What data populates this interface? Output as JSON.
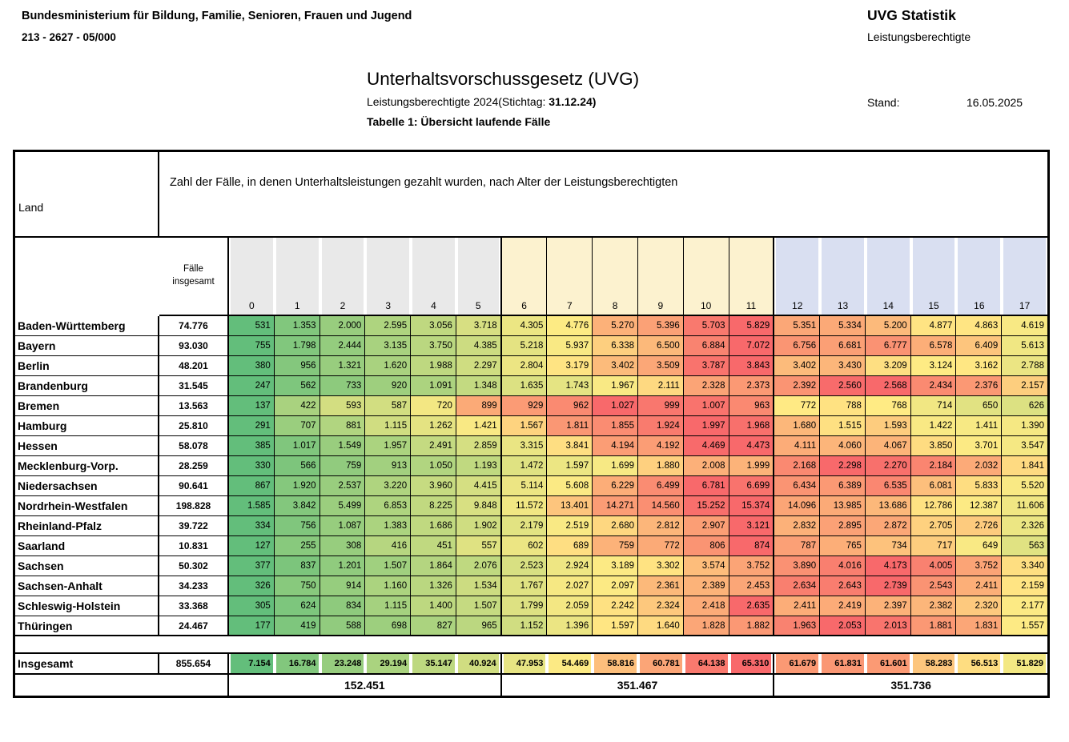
{
  "letterhead": {
    "ministry": "Bundesministerium für Bildung, Familie, Senioren, Frauen und Jugend",
    "reference": "213 - 2627 - 05/000",
    "program": "UVG Statistik",
    "program_sub": "Leistungsberechtigte",
    "stand_label": "Stand:",
    "stand_date": "16.05.2025"
  },
  "title": {
    "main": "Unterhaltsvorschussgesetz (UVG)",
    "subtitle_prefix": "Leistungsberechtigte 2024(Stichtag: ",
    "subtitle_bold": "31.12.24)",
    "table_label": "Tabelle 1: Übersicht laufende Fälle"
  },
  "table": {
    "description": "Zahl der Fälle, in denen Unterhaltsleistungen gezahlt wurden, nach Alter der Leistungsberechtigten",
    "land_header": "Land",
    "faelle_header": "Fälle insgesamt",
    "age_columns": [
      "0",
      "1",
      "2",
      "3",
      "4",
      "5",
      "6",
      "7",
      "8",
      "9",
      "10",
      "11",
      "12",
      "13",
      "14",
      "15",
      "16",
      "17"
    ],
    "rows": [
      {
        "land": "Baden-Württemberg",
        "total": 74776,
        "values": [
          531,
          1353,
          2000,
          2595,
          3056,
          3718,
          4305,
          4776,
          5270,
          5396,
          5703,
          5829,
          5351,
          5334,
          5200,
          4877,
          4863,
          4619
        ]
      },
      {
        "land": "Bayern",
        "total": 93030,
        "values": [
          755,
          1798,
          2444,
          3135,
          3750,
          4385,
          5218,
          5937,
          6338,
          6500,
          6884,
          7072,
          6756,
          6681,
          6777,
          6578,
          6409,
          5613
        ]
      },
      {
        "land": "Berlin",
        "total": 48201,
        "values": [
          380,
          956,
          1321,
          1620,
          1988,
          2297,
          2804,
          3179,
          3402,
          3509,
          3787,
          3843,
          3402,
          3430,
          3209,
          3124,
          3162,
          2788
        ]
      },
      {
        "land": "Brandenburg",
        "total": 31545,
        "values": [
          247,
          562,
          733,
          920,
          1091,
          1348,
          1635,
          1743,
          1967,
          2111,
          2328,
          2373,
          2392,
          2560,
          2568,
          2434,
          2376,
          2157
        ]
      },
      {
        "land": "Bremen",
        "total": 13563,
        "values": [
          137,
          422,
          593,
          587,
          720,
          899,
          929,
          962,
          1027,
          999,
          1007,
          963,
          772,
          788,
          768,
          714,
          650,
          626
        ]
      },
      {
        "land": "Hamburg",
        "total": 25810,
        "values": [
          291,
          707,
          881,
          1115,
          1262,
          1421,
          1567,
          1811,
          1855,
          1924,
          1997,
          1968,
          1680,
          1515,
          1593,
          1422,
          1411,
          1390
        ]
      },
      {
        "land": "Hessen",
        "total": 58078,
        "values": [
          385,
          1017,
          1549,
          1957,
          2491,
          2859,
          3315,
          3841,
          4194,
          4192,
          4469,
          4473,
          4111,
          4060,
          4067,
          3850,
          3701,
          3547
        ]
      },
      {
        "land": "Mecklenburg-Vorp.",
        "total": 28259,
        "values": [
          330,
          566,
          759,
          913,
          1050,
          1193,
          1472,
          1597,
          1699,
          1880,
          2008,
          1999,
          2168,
          2298,
          2270,
          2184,
          2032,
          1841
        ]
      },
      {
        "land": "Niedersachsen",
        "total": 90641,
        "values": [
          867,
          1920,
          2537,
          3220,
          3960,
          4415,
          5114,
          5608,
          6229,
          6499,
          6781,
          6699,
          6434,
          6389,
          6535,
          6081,
          5833,
          5520
        ]
      },
      {
        "land": "Nordrhein-Westfalen",
        "total": 198828,
        "values": [
          1585,
          3842,
          5499,
          6853,
          8225,
          9848,
          11572,
          13401,
          14271,
          14560,
          15252,
          15374,
          14096,
          13985,
          13686,
          12786,
          12387,
          11606
        ]
      },
      {
        "land": "Rheinland-Pfalz",
        "total": 39722,
        "values": [
          334,
          756,
          1087,
          1383,
          1686,
          1902,
          2179,
          2519,
          2680,
          2812,
          2907,
          3121,
          2832,
          2895,
          2872,
          2705,
          2726,
          2326
        ]
      },
      {
        "land": "Saarland",
        "total": 10831,
        "values": [
          127,
          255,
          308,
          416,
          451,
          557,
          602,
          689,
          759,
          772,
          806,
          874,
          787,
          765,
          734,
          717,
          649,
          563
        ]
      },
      {
        "land": "Sachsen",
        "total": 50302,
        "values": [
          377,
          837,
          1201,
          1507,
          1864,
          2076,
          2523,
          2924,
          3189,
          3302,
          3574,
          3752,
          3890,
          4016,
          4173,
          4005,
          3752,
          3340
        ]
      },
      {
        "land": "Sachsen-Anhalt",
        "total": 34233,
        "values": [
          326,
          750,
          914,
          1160,
          1326,
          1534,
          1767,
          2027,
          2097,
          2361,
          2389,
          2453,
          2634,
          2643,
          2739,
          2543,
          2411,
          2159
        ]
      },
      {
        "land": "Schleswig-Holstein",
        "total": 33368,
        "values": [
          305,
          624,
          834,
          1115,
          1400,
          1507,
          1799,
          2059,
          2242,
          2324,
          2418,
          2635,
          2411,
          2419,
          2397,
          2382,
          2320,
          2177
        ]
      },
      {
        "land": "Thüringen",
        "total": 24467,
        "values": [
          177,
          419,
          588,
          698,
          827,
          965,
          1152,
          1396,
          1597,
          1640,
          1828,
          1882,
          1963,
          2053,
          2013,
          1881,
          1831,
          1557
        ]
      }
    ],
    "sum_row": {
      "land": "Insgesamt",
      "total": 855654,
      "values": [
        7154,
        16784,
        23248,
        29194,
        35147,
        40924,
        47953,
        54469,
        58816,
        60781,
        64138,
        65310,
        61679,
        61831,
        61601,
        58283,
        56513,
        51829
      ]
    },
    "group_totals": [
      152451,
      351467,
      351736
    ],
    "colors": {
      "scale_min": "#63BE7B",
      "scale_mid": "#FFEB84",
      "scale_max": "#F8696B",
      "band_gray": "#E9E9E9",
      "band_cream": "#FCF2CF",
      "band_blue": "#D9DFF1"
    }
  }
}
